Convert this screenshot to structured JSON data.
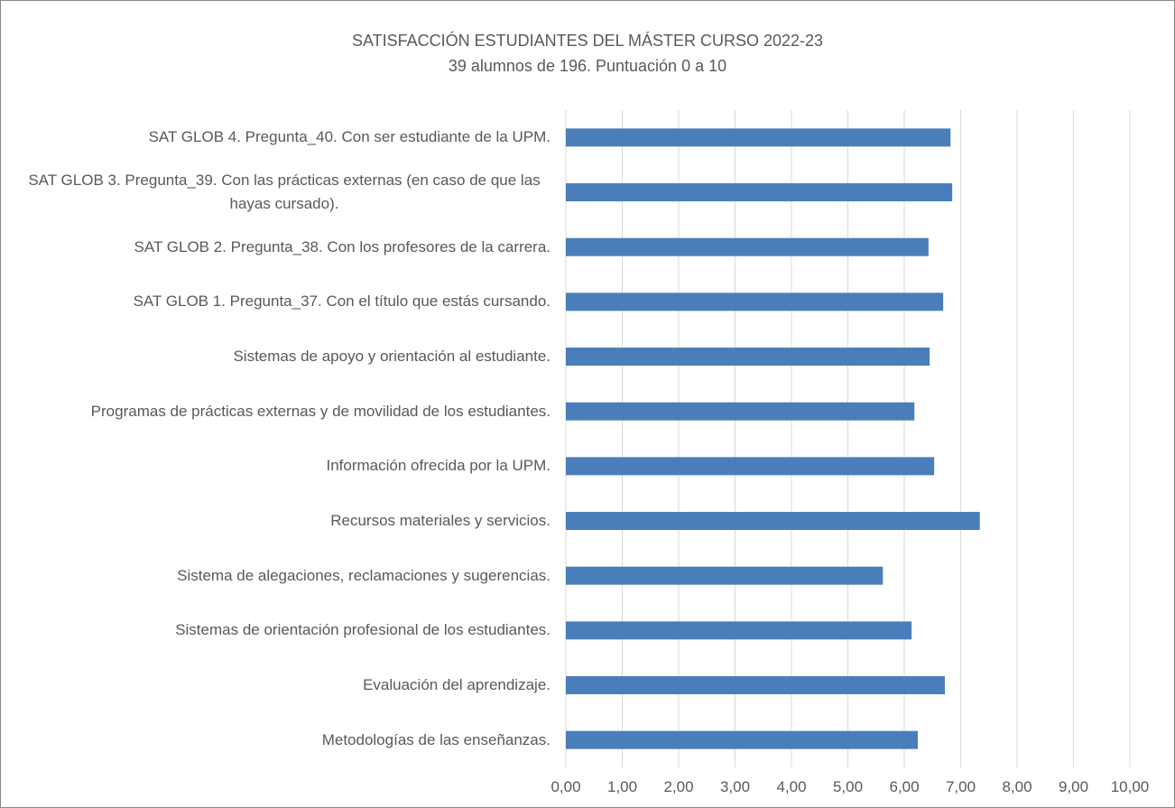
{
  "chart_data": {
    "type": "bar",
    "orientation": "horizontal",
    "title": "SATISFACCIÓN ESTUDIANTES DEL MÁSTER CURSO 2022-23",
    "subtitle": "39 alumnos de 196. Puntuación 0 a 10",
    "categories": [
      "SAT GLOB 4. Pregunta_40. Con ser estudiante de la UPM.",
      "SAT GLOB 3. Pregunta_39. Con las prácticas externas (en caso de que las hayas cursado).",
      "SAT GLOB 2. Pregunta_38. Con los profesores de la carrera.",
      "SAT GLOB 1. Pregunta_37. Con el título que estás cursando.",
      "Sistemas de apoyo y orientación al estudiante.",
      "Programas de prácticas externas y de movilidad de los estudiantes.",
      "Información ofrecida por la UPM.",
      "Recursos materiales y servicios.",
      "Sistema de alegaciones, reclamaciones y sugerencias.",
      "Sistemas de orientación profesional de los estudiantes.",
      "Evaluación del aprendizaje.",
      "Metodologías de las enseñanzas."
    ],
    "values": [
      6.82,
      6.85,
      6.43,
      6.69,
      6.45,
      6.18,
      6.53,
      7.34,
      5.62,
      6.13,
      6.72,
      6.24
    ],
    "color": "#4a7ebb",
    "xlim": [
      0,
      10
    ],
    "xticks": [
      {
        "value": 0,
        "label": "0,00"
      },
      {
        "value": 1,
        "label": "1,00"
      },
      {
        "value": 2,
        "label": "2,00"
      },
      {
        "value": 3,
        "label": "3,00"
      },
      {
        "value": 4,
        "label": "4,00"
      },
      {
        "value": 5,
        "label": "5,00"
      },
      {
        "value": 6,
        "label": "6,00"
      },
      {
        "value": 7,
        "label": "7,00"
      },
      {
        "value": 8,
        "label": "8,00"
      },
      {
        "value": 9,
        "label": "9,00"
      },
      {
        "value": 10,
        "label": "10,00"
      }
    ],
    "grid": true
  }
}
